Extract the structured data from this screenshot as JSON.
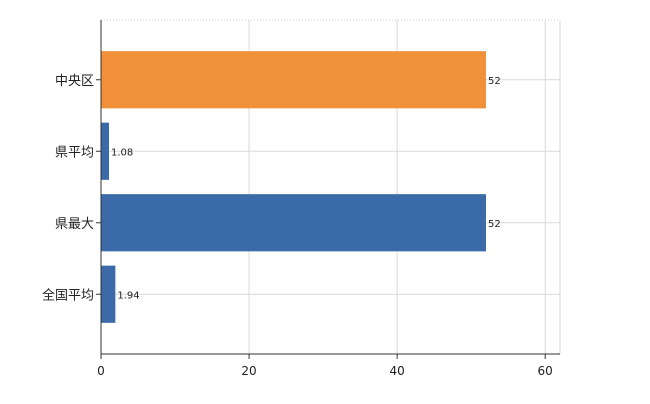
{
  "chart_data": {
    "type": "bar",
    "orientation": "horizontal",
    "categories": [
      "中央区",
      "県平均",
      "県最大",
      "全国平均"
    ],
    "values": [
      52,
      1.08,
      52,
      1.94
    ],
    "data_labels": [
      "52",
      "1.08",
      "52",
      "1.94"
    ],
    "bar_colors": [
      "#f0913a",
      "#3a6aa8",
      "#3a6aa8",
      "#3a6aa8"
    ],
    "xlim": [
      0,
      62
    ],
    "xticks": [
      0,
      20,
      40,
      60
    ],
    "xtick_labels": [
      "0",
      "20",
      "40",
      "60"
    ],
    "grid": true,
    "legend": false,
    "title": "",
    "xlabel": "",
    "ylabel": ""
  }
}
